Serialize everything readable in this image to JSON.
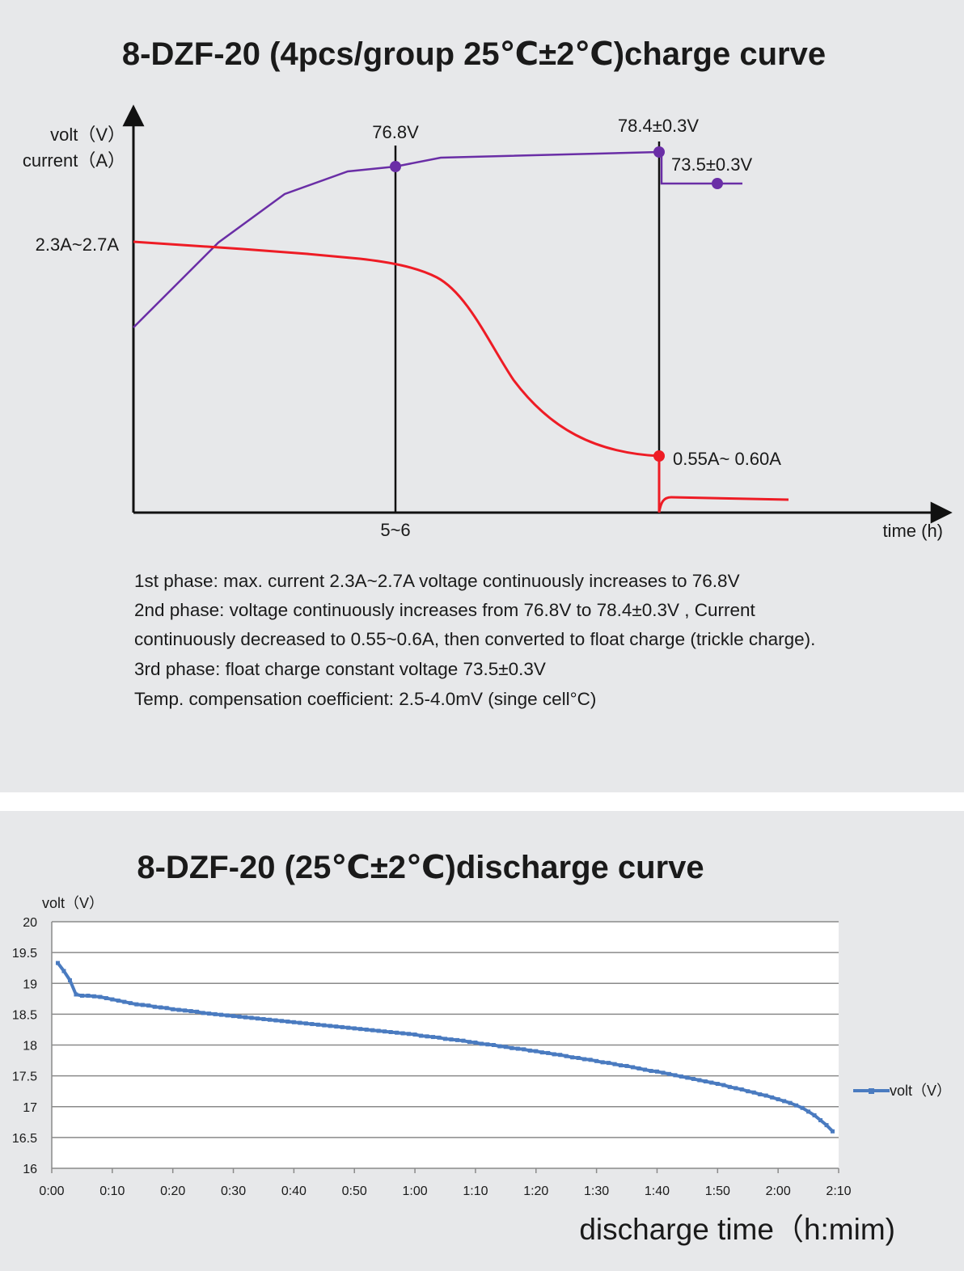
{
  "chart_data": [
    {
      "type": "line",
      "title": "8-DZF-20 (4pcs/group 25℃±2℃)charge curve",
      "ylabel": [
        "volt（V）",
        "current（A）"
      ],
      "xlabel": "time (h)",
      "x_ticks": [
        {
          "label": "5~6"
        }
      ],
      "y_ticks": [
        {
          "label": "2.3A~2.7A"
        }
      ],
      "series": [
        {
          "role": "voltage",
          "color": "#6a2ea6"
        },
        {
          "role": "current",
          "color": "#ee1c25"
        }
      ],
      "annotations": [
        {
          "label": "76.8V"
        },
        {
          "label": "78.4±0.3V"
        },
        {
          "label": "73.5±0.3V"
        },
        {
          "label": "0.55A~ 0.60A"
        }
      ],
      "notes": [
        "1st phase: max. current 2.3A~2.7A voltage continuously increases to 76.8V",
        "2nd phase: voltage continuously increases from 76.8V to 78.4±0.3V , Current",
        "continuously decreased to 0.55~0.6A, then converted to float charge (trickle charge).",
        "3rd phase: float charge constant voltage 73.5±0.3V",
        "Temp. compensation coefficient: 2.5-4.0mV (singe cell°C)"
      ]
    },
    {
      "type": "line",
      "title": "8-DZF-20 (25℃±2℃)discharge curve",
      "ylabel": "volt（V）",
      "xlabel": "discharge time（h:mim)",
      "ylim": [
        16,
        20
      ],
      "y_ticks": [
        "16",
        "16.5",
        "17",
        "17.5",
        "18",
        "18.5",
        "19",
        "19.5",
        "20"
      ],
      "xlim_minutes": [
        0,
        130
      ],
      "x_ticks": [
        "0:00",
        "0:10",
        "0:20",
        "0:30",
        "0:40",
        "0:50",
        "1:00",
        "1:10",
        "1:20",
        "1:30",
        "1:40",
        "1:50",
        "2:00",
        "2:10"
      ],
      "grid": true,
      "legend": "right",
      "series": [
        {
          "name": "volt（V）",
          "color": "#4a7bc0",
          "x_minutes": [
            1,
            2,
            3,
            4,
            5,
            6,
            7,
            8,
            9,
            10,
            11,
            12,
            13,
            14,
            15,
            16,
            17,
            18,
            19,
            20,
            21,
            22,
            23,
            24,
            25,
            26,
            27,
            28,
            29,
            30,
            31,
            32,
            33,
            34,
            35,
            36,
            37,
            38,
            39,
            40,
            41,
            42,
            43,
            44,
            45,
            46,
            47,
            48,
            49,
            50,
            51,
            52,
            53,
            54,
            55,
            56,
            57,
            58,
            59,
            60,
            61,
            62,
            63,
            64,
            65,
            66,
            67,
            68,
            69,
            70,
            71,
            72,
            73,
            74,
            75,
            76,
            77,
            78,
            79,
            80,
            81,
            82,
            83,
            84,
            85,
            86,
            87,
            88,
            89,
            90,
            91,
            92,
            93,
            94,
            95,
            96,
            97,
            98,
            99,
            100,
            101,
            102,
            103,
            104,
            105,
            106,
            107,
            108,
            109,
            110,
            111,
            112,
            113,
            114,
            115,
            116,
            117,
            118,
            119,
            120,
            121,
            122,
            123,
            124,
            125,
            126,
            127,
            128,
            129
          ],
          "values": [
            19.33,
            19.2,
            19.05,
            18.82,
            18.8,
            18.8,
            18.79,
            18.78,
            18.76,
            18.74,
            18.72,
            18.7,
            18.68,
            18.66,
            18.65,
            18.64,
            18.62,
            18.61,
            18.6,
            18.58,
            18.57,
            18.56,
            18.55,
            18.54,
            18.52,
            18.51,
            18.5,
            18.49,
            18.48,
            18.47,
            18.46,
            18.45,
            18.44,
            18.43,
            18.42,
            18.41,
            18.4,
            18.39,
            18.38,
            18.37,
            18.36,
            18.35,
            18.34,
            18.33,
            18.32,
            18.31,
            18.3,
            18.29,
            18.28,
            18.27,
            18.26,
            18.25,
            18.24,
            18.23,
            18.22,
            18.21,
            18.2,
            18.19,
            18.18,
            18.17,
            18.15,
            18.14,
            18.13,
            18.12,
            18.1,
            18.09,
            18.08,
            18.07,
            18.05,
            18.04,
            18.02,
            18.01,
            18.0,
            17.98,
            17.97,
            17.95,
            17.94,
            17.93,
            17.91,
            17.9,
            17.88,
            17.87,
            17.85,
            17.84,
            17.82,
            17.8,
            17.79,
            17.77,
            17.76,
            17.74,
            17.72,
            17.71,
            17.69,
            17.67,
            17.66,
            17.64,
            17.62,
            17.6,
            17.58,
            17.57,
            17.55,
            17.53,
            17.51,
            17.49,
            17.47,
            17.45,
            17.43,
            17.41,
            17.39,
            17.37,
            17.35,
            17.32,
            17.3,
            17.28,
            17.25,
            17.23,
            17.2,
            17.18,
            17.15,
            17.12,
            17.09,
            17.06,
            17.02,
            16.98,
            16.92,
            16.86,
            16.78,
            16.7,
            16.6
          ]
        }
      ]
    }
  ]
}
